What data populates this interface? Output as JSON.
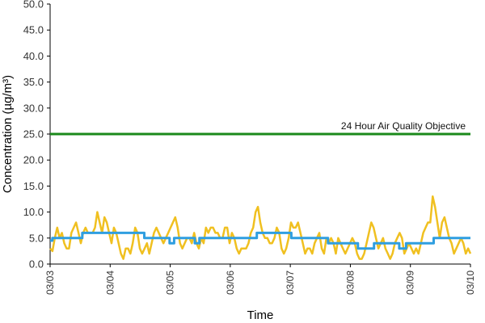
{
  "chart_data": {
    "type": "line",
    "xlabel": "Time",
    "ylabel": "Concentration (µg/m³)",
    "ylim": [
      0,
      50
    ],
    "yticks": [
      "0.0",
      "5.0",
      "10.0",
      "15.0",
      "20.0",
      "25.0",
      "30.0",
      "35.0",
      "40.0",
      "45.0",
      "50.0"
    ],
    "xticks": [
      "03/03",
      "03/04",
      "03/05",
      "03/06",
      "03/07",
      "03/08",
      "03/09",
      "03/10"
    ],
    "grid": false,
    "legend": "none",
    "colors": {
      "hourly": "#f0c020",
      "daily": "#2f9ee0",
      "objective": "#1a8a1a"
    },
    "objective": {
      "label": "24 Hour Air Quality Objective",
      "value": 25
    },
    "series": [
      {
        "values": [
          3,
          2.5,
          5,
          7,
          5,
          6,
          4,
          3,
          3,
          6,
          7,
          8,
          6,
          4,
          6,
          7,
          6,
          6,
          6,
          7,
          10,
          8,
          6,
          9,
          8,
          6,
          4,
          7,
          6,
          4,
          2,
          1,
          3,
          3,
          2,
          4,
          7,
          6,
          3,
          2,
          3,
          4,
          2,
          4,
          6,
          7,
          6,
          5,
          4,
          5,
          6,
          7,
          8,
          9,
          7,
          4,
          3,
          4,
          5,
          5,
          4,
          6,
          4,
          3,
          5,
          4,
          7,
          6,
          7,
          7,
          6,
          6,
          5,
          5,
          7,
          7,
          4,
          6,
          5,
          3,
          2,
          3,
          3,
          3,
          4,
          6,
          7,
          10,
          11,
          8,
          6,
          5,
          5,
          4,
          4,
          5,
          7,
          6,
          3,
          2,
          3,
          5,
          8,
          7,
          7,
          8,
          6,
          4,
          2,
          3,
          3,
          2,
          4,
          5,
          6,
          3,
          2,
          5,
          4,
          5,
          4,
          2,
          5,
          4,
          3,
          2,
          3,
          4,
          5,
          4,
          2,
          1,
          1,
          2,
          4,
          6,
          8,
          7,
          5,
          3,
          4,
          5,
          3,
          2,
          1,
          2,
          4,
          5,
          6,
          5,
          2,
          3,
          4,
          3,
          2,
          3,
          2,
          4,
          6,
          7,
          8,
          8,
          13,
          11,
          8,
          5,
          8,
          9,
          7,
          5,
          4,
          2,
          3,
          4,
          5,
          4,
          2,
          3,
          2
        ],
        "interval": "hourly"
      },
      {
        "values": [
          4.5,
          5,
          5,
          5,
          5,
          5,
          5,
          5,
          5,
          5,
          5,
          5,
          5,
          5,
          6,
          6,
          6,
          6,
          6,
          6,
          6,
          6,
          6,
          6,
          6,
          6,
          6,
          6,
          6,
          6,
          6,
          6,
          6,
          6,
          6,
          6,
          6,
          6,
          6,
          6,
          6,
          5,
          5,
          5,
          5,
          5,
          5,
          5,
          5,
          5,
          5,
          5,
          4,
          4,
          5,
          5,
          5,
          5,
          5,
          5,
          5,
          5,
          5,
          4,
          4,
          5,
          5,
          5,
          5,
          5,
          5,
          5,
          5,
          5,
          5,
          5,
          5,
          5,
          5,
          5,
          5,
          5,
          5,
          5,
          5,
          5,
          5,
          5,
          5,
          5,
          6,
          6,
          6,
          6,
          6,
          6,
          6,
          6,
          6,
          6,
          6,
          6,
          6,
          6,
          6,
          5,
          5,
          5,
          5,
          5,
          5,
          5,
          5,
          5,
          5,
          5,
          5,
          5,
          5,
          5,
          5,
          4,
          4,
          4,
          4,
          4,
          4,
          4,
          4,
          4,
          4,
          4,
          4,
          4,
          3,
          3,
          3,
          3,
          3,
          3,
          3,
          4,
          4,
          4,
          4,
          4,
          4,
          4,
          4,
          4,
          4,
          4,
          3,
          3,
          3,
          4,
          4,
          4,
          4,
          4,
          4,
          4,
          4,
          4,
          4,
          4,
          4,
          5,
          5,
          5,
          5,
          5,
          5,
          5,
          5,
          5,
          5,
          5,
          5,
          5,
          5,
          5,
          5,
          5
        ],
        "interval": "daily"
      }
    ]
  }
}
